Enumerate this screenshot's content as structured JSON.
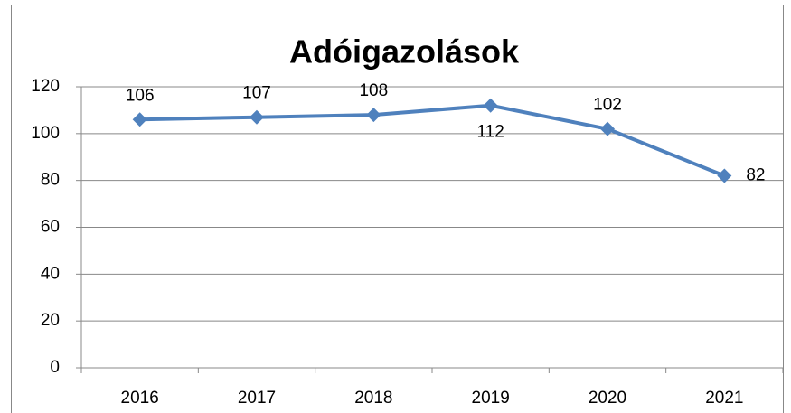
{
  "chart_data": {
    "type": "line",
    "title": "Adóigazolások",
    "categories": [
      "2016",
      "2017",
      "2018",
      "2019",
      "2020",
      "2021"
    ],
    "series": [
      {
        "name": "Adóigazolások",
        "color": "#4f81bd",
        "values": [
          106,
          107,
          108,
          112,
          102,
          82
        ]
      }
    ],
    "ylim": [
      0,
      120
    ],
    "yticks": [
      0,
      20,
      40,
      60,
      80,
      100,
      120
    ],
    "grid": true
  }
}
